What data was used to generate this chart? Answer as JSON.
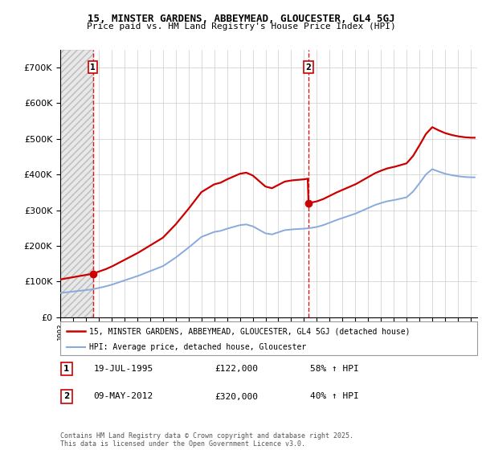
{
  "title1": "15, MINSTER GARDENS, ABBEYMEAD, GLOUCESTER, GL4 5GJ",
  "title2": "Price paid vs. HM Land Registry's House Price Index (HPI)",
  "legend_line1": "15, MINSTER GARDENS, ABBEYMEAD, GLOUCESTER, GL4 5GJ (detached house)",
  "legend_line2": "HPI: Average price, detached house, Gloucester",
  "annotation1_date": "19-JUL-1995",
  "annotation1_price": "£122,000",
  "annotation1_hpi": "58% ↑ HPI",
  "annotation2_date": "09-MAY-2012",
  "annotation2_price": "£320,000",
  "annotation2_hpi": "40% ↑ HPI",
  "footer": "Contains HM Land Registry data © Crown copyright and database right 2025.\nThis data is licensed under the Open Government Licence v3.0.",
  "price_color": "#cc0000",
  "hpi_color": "#88aadd",
  "vline_color": "#dd0000",
  "ann_box_color": "#cc0000",
  "ylim": [
    0,
    750000
  ],
  "yticks": [
    0,
    100000,
    200000,
    300000,
    400000,
    500000,
    600000,
    700000
  ],
  "sale1_year": 1995.54,
  "sale1_value": 122000,
  "sale2_year": 2012.35,
  "sale2_value": 320000,
  "years_hpi": [
    1993,
    1993.5,
    1994,
    1994.5,
    1995,
    1995.5,
    1996,
    1996.5,
    1997,
    1997.5,
    1998,
    1998.5,
    1999,
    1999.5,
    2000,
    2000.5,
    2001,
    2001.5,
    2002,
    2002.5,
    2003,
    2003.5,
    2004,
    2004.5,
    2005,
    2005.5,
    2006,
    2006.5,
    2007,
    2007.5,
    2008,
    2008.5,
    2009,
    2009.5,
    2010,
    2010.5,
    2011,
    2011.5,
    2012,
    2012.5,
    2013,
    2013.5,
    2014,
    2014.5,
    2015,
    2015.5,
    2016,
    2016.5,
    2017,
    2017.5,
    2018,
    2018.5,
    2019,
    2019.5,
    2020,
    2020.5,
    2021,
    2021.5,
    2022,
    2022.5,
    2023,
    2023.5,
    2024,
    2024.5,
    2025
  ],
  "hpi_vals": [
    68000,
    70000,
    72000,
    74000,
    76000,
    78000,
    82000,
    86000,
    91000,
    97000,
    103000,
    109000,
    115000,
    122000,
    129000,
    136000,
    143000,
    155000,
    167000,
    181000,
    195000,
    210000,
    225000,
    232000,
    239000,
    242000,
    248000,
    253000,
    258000,
    260000,
    255000,
    245000,
    235000,
    232000,
    238000,
    244000,
    246000,
    247000,
    248000,
    250000,
    253000,
    258000,
    265000,
    272000,
    278000,
    284000,
    290000,
    298000,
    306000,
    314000,
    320000,
    325000,
    328000,
    332000,
    336000,
    352000,
    375000,
    400000,
    415000,
    408000,
    402000,
    398000,
    395000,
    393000,
    392000
  ]
}
